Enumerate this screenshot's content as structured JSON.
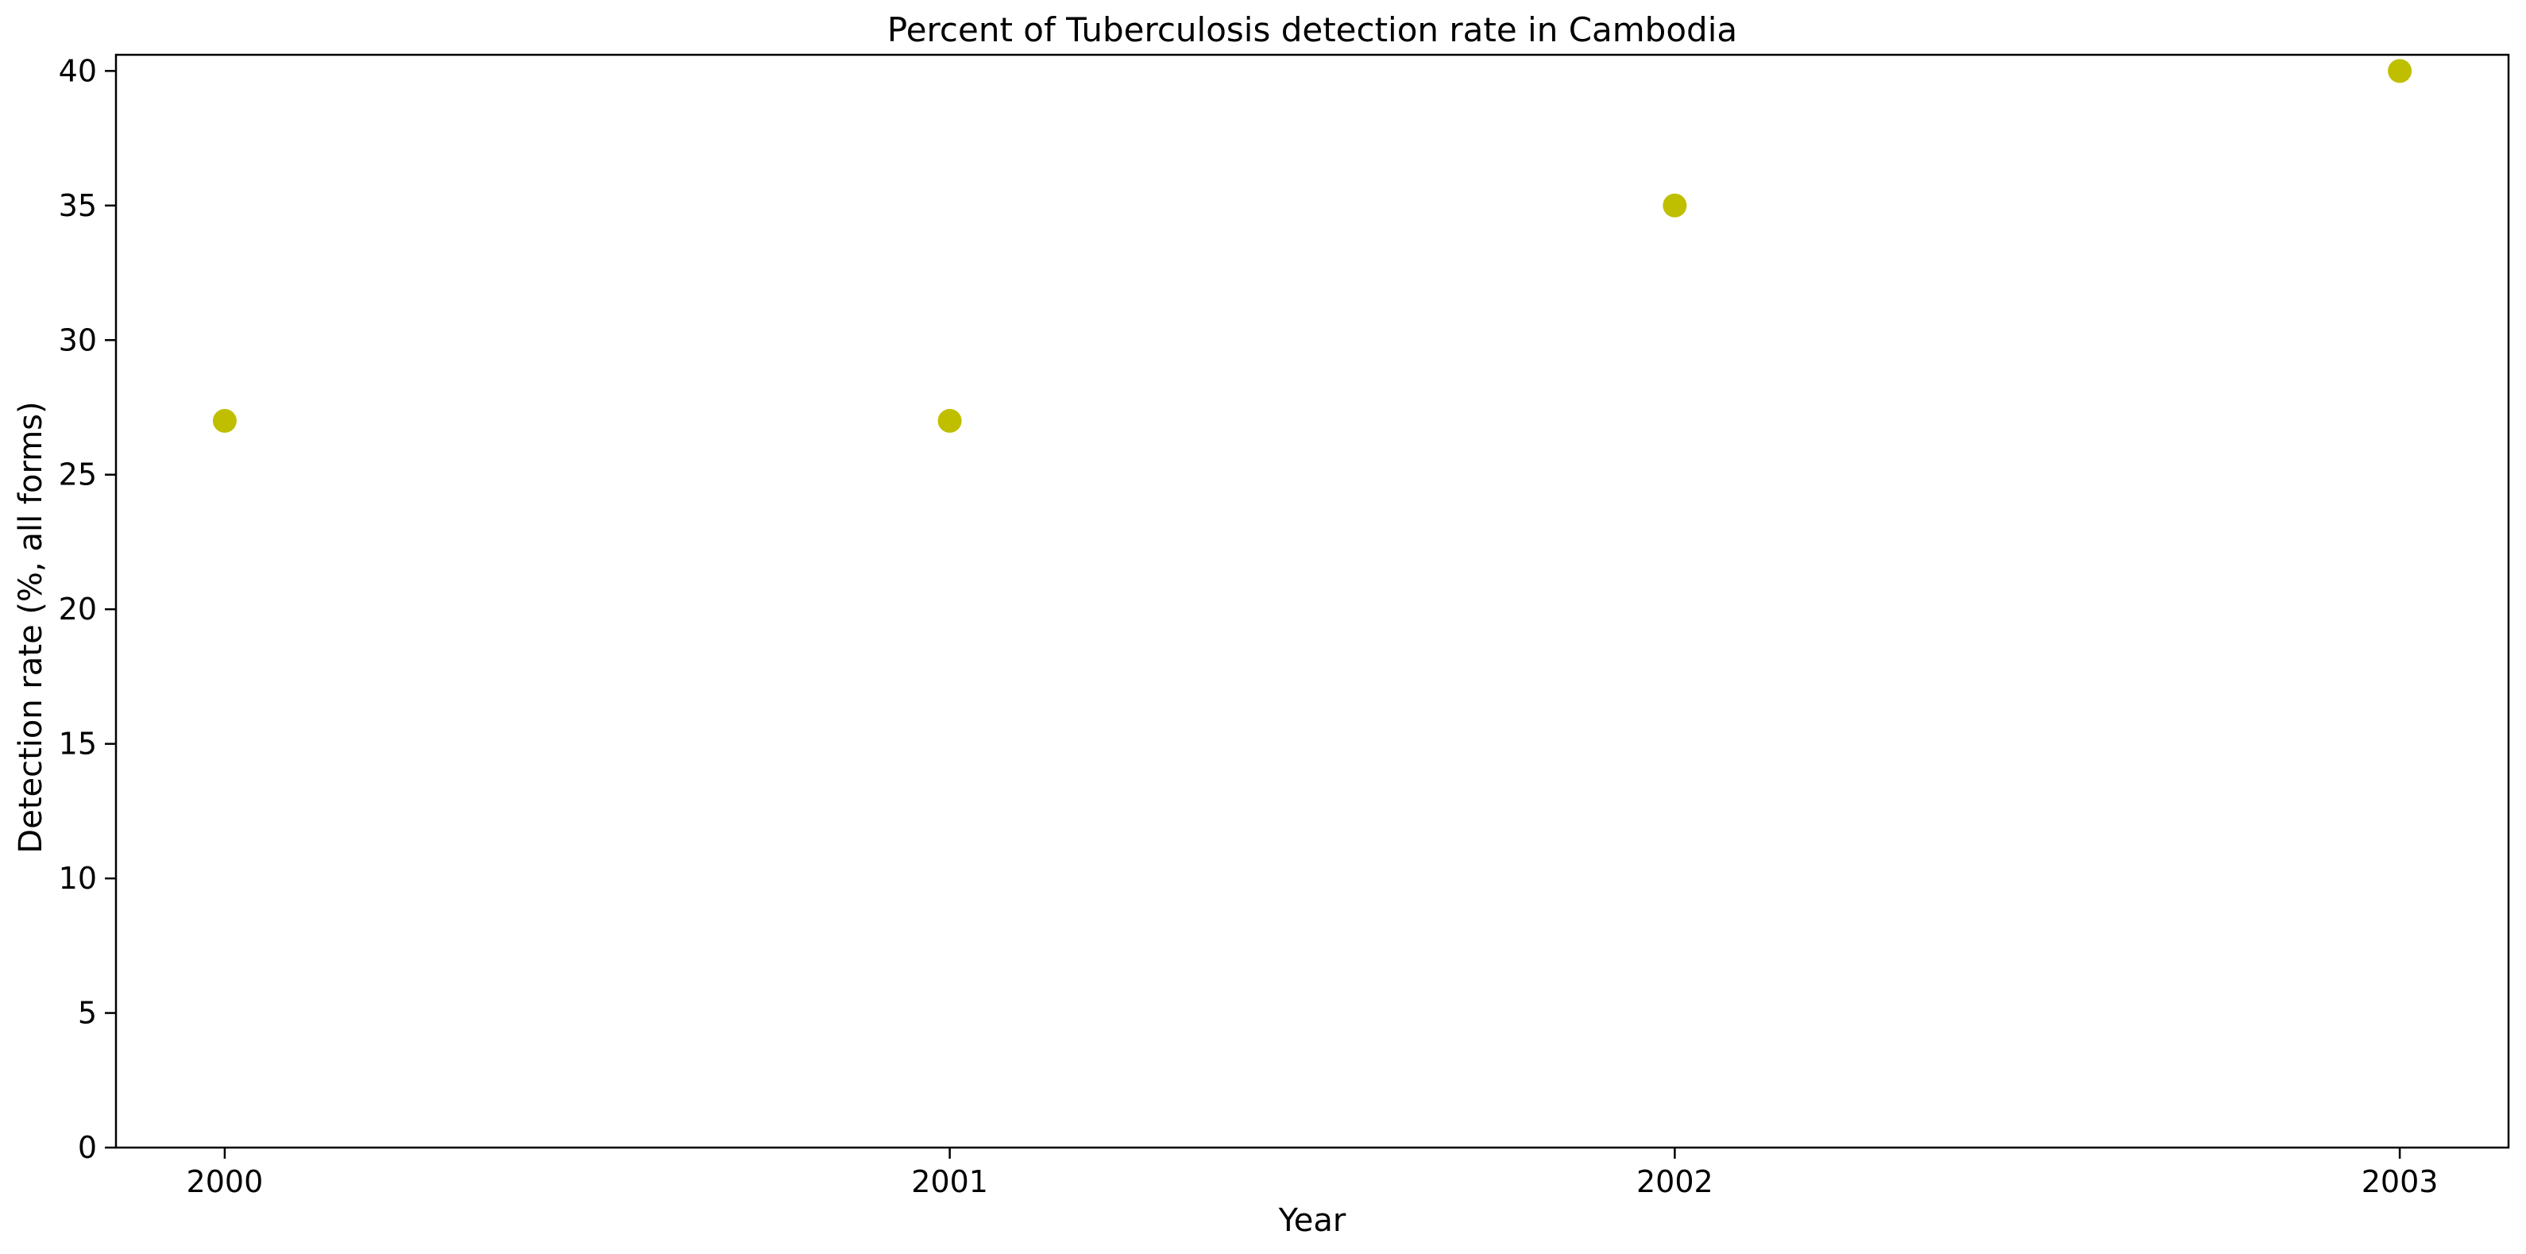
{
  "chart_data": {
    "type": "scatter",
    "title": "Percent of Tuberculosis detection rate in Cambodia",
    "xlabel": "Year",
    "ylabel": "Detection rate (%, all forms)",
    "x": [
      2000,
      2001,
      2002,
      2003
    ],
    "x_tick_labels": [
      "2000",
      "2001",
      "2002",
      "2003"
    ],
    "series": [
      {
        "values": [
          27,
          27,
          35,
          40
        ],
        "color": "#bfbf00"
      }
    ],
    "xlim": [
      1999.85,
      2003.15
    ],
    "ylim": [
      0,
      40.6
    ],
    "y_ticks": [
      0,
      5,
      10,
      15,
      20,
      25,
      30,
      35,
      40
    ],
    "y_tick_labels": [
      "0",
      "5",
      "10",
      "15",
      "20",
      "25",
      "30",
      "35",
      "40"
    ],
    "grid": false,
    "legend": "none"
  }
}
